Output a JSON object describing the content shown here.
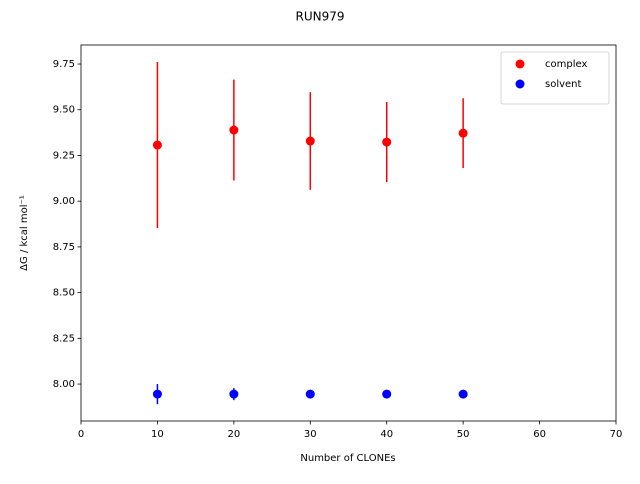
{
  "chart_data": {
    "type": "errorbar",
    "title": "RUN979",
    "x_label": "Number of CLONEs",
    "y_label": "ΔG / kcal mol⁻¹",
    "x": [
      10,
      20,
      30,
      40,
      50
    ],
    "series": [
      {
        "name": "complex",
        "color": "#ff0000",
        "values": [
          9.307,
          9.389,
          9.329,
          9.323,
          9.372
        ],
        "errors": [
          0.454,
          0.276,
          0.267,
          0.219,
          0.191
        ]
      },
      {
        "name": "solvent",
        "color": "#0000ff",
        "values": [
          7.945,
          7.945,
          7.945,
          7.945,
          7.945
        ],
        "errors": [
          0.055,
          0.033,
          0.015,
          0.015,
          0.01
        ]
      }
    ],
    "xlim": [
      0,
      70
    ],
    "xticks": [
      0,
      10,
      20,
      30,
      40,
      50,
      60,
      70
    ],
    "ylim": [
      7.798,
      9.854
    ],
    "yticks": [
      {
        "value": 8,
        "label": "8.00"
      },
      {
        "value": 8.25,
        "label": "8.25"
      },
      {
        "value": 8.5,
        "label": "8.50"
      },
      {
        "value": 8.75,
        "label": "8.75"
      },
      {
        "value": 9,
        "label": "9.00"
      },
      {
        "value": 9.25,
        "label": "9.25"
      },
      {
        "value": 9.5,
        "label": "9.50"
      },
      {
        "value": 9.75,
        "label": "9.75"
      }
    ],
    "legend": "upper right",
    "grid": false
  }
}
